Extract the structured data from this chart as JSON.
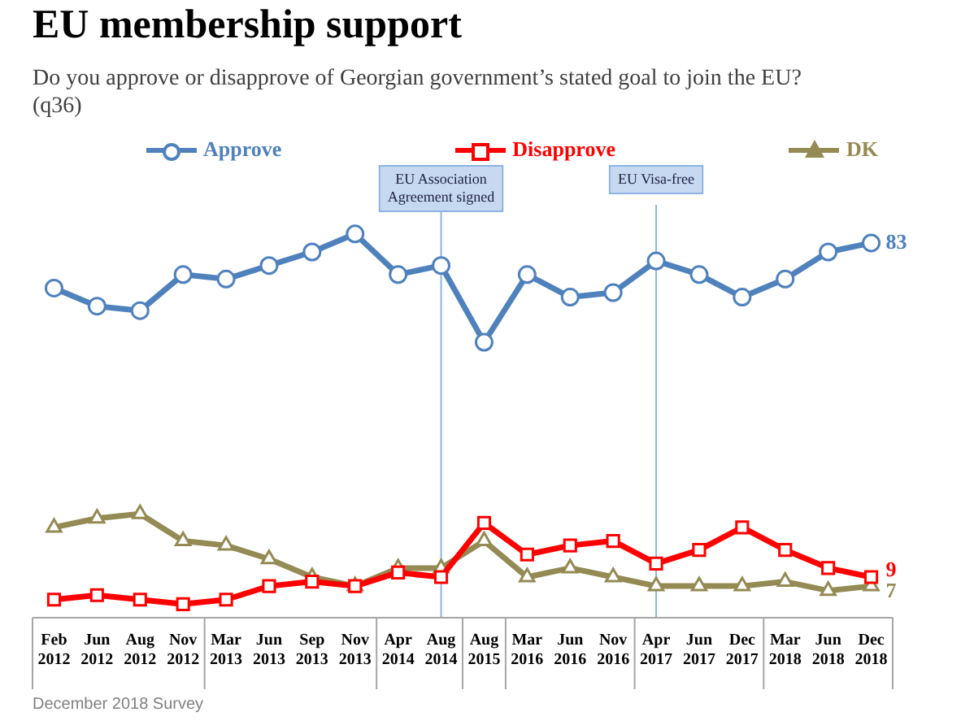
{
  "chart_data": {
    "type": "line",
    "title": "EU membership support",
    "subtitle": "Do you approve or disapprove of Georgian government’s stated goal to join the EU? (q36)",
    "categories": [
      "Feb 2012",
      "Jun 2012",
      "Aug 2012",
      "Nov 2012",
      "Mar 2013",
      "Jun 2013",
      "Sep 2013",
      "Nov 2013",
      "Apr 2014",
      "Aug 2014",
      "Aug 2015",
      "Mar 2016",
      "Jun 2016",
      "Nov 2016",
      "Apr 2017",
      "Jun 2017",
      "Dec 2017",
      "Mar 2018",
      "Jun 2018",
      "Dec 2018"
    ],
    "series": [
      {
        "name": "Approve",
        "color": "#4f81bd",
        "marker": "circle",
        "values": [
          73,
          69,
          68,
          76,
          75,
          78,
          81,
          85,
          76,
          78,
          61,
          76,
          71,
          72,
          79,
          76,
          71,
          75,
          81,
          83
        ],
        "value_labels": [
          null,
          null,
          null,
          null,
          null,
          null,
          null,
          null,
          null,
          null,
          null,
          null,
          null,
          null,
          null,
          null,
          null,
          null,
          null,
          "83"
        ]
      },
      {
        "name": "Disapprove",
        "color": "#ff0000",
        "marker": "square",
        "values": [
          4,
          5,
          4,
          3,
          4,
          7,
          8,
          7,
          10,
          9,
          21,
          14,
          16,
          17,
          12,
          15,
          20,
          15,
          11,
          9
        ],
        "value_labels": [
          null,
          null,
          null,
          null,
          null,
          null,
          null,
          null,
          null,
          null,
          null,
          null,
          null,
          null,
          null,
          null,
          null,
          null,
          null,
          "9"
        ]
      },
      {
        "name": "DK",
        "color": "#948a54",
        "marker": "triangle",
        "values": [
          20,
          22,
          23,
          17,
          16,
          13,
          9,
          7,
          11,
          11,
          17,
          9,
          11,
          9,
          7,
          7,
          7,
          8,
          6,
          7
        ],
        "value_labels": [
          null,
          null,
          null,
          null,
          null,
          null,
          null,
          null,
          null,
          null,
          null,
          null,
          null,
          null,
          null,
          null,
          null,
          null,
          null,
          "7"
        ]
      }
    ],
    "tick_labels": "x",
    "grid": false,
    "legend": "top",
    "line_style": "solid",
    "ref_lines": [
      {
        "axis": "x",
        "value": "Aug 2014",
        "label": "EU Association Agreement signed",
        "color": "#8eb4e3"
      },
      {
        "axis": "x",
        "value": "Apr 2017",
        "label": "EU Visa-free",
        "color": "#8eb4e3"
      }
    ],
    "annotations": [
      "December 2018 Survey"
    ]
  }
}
